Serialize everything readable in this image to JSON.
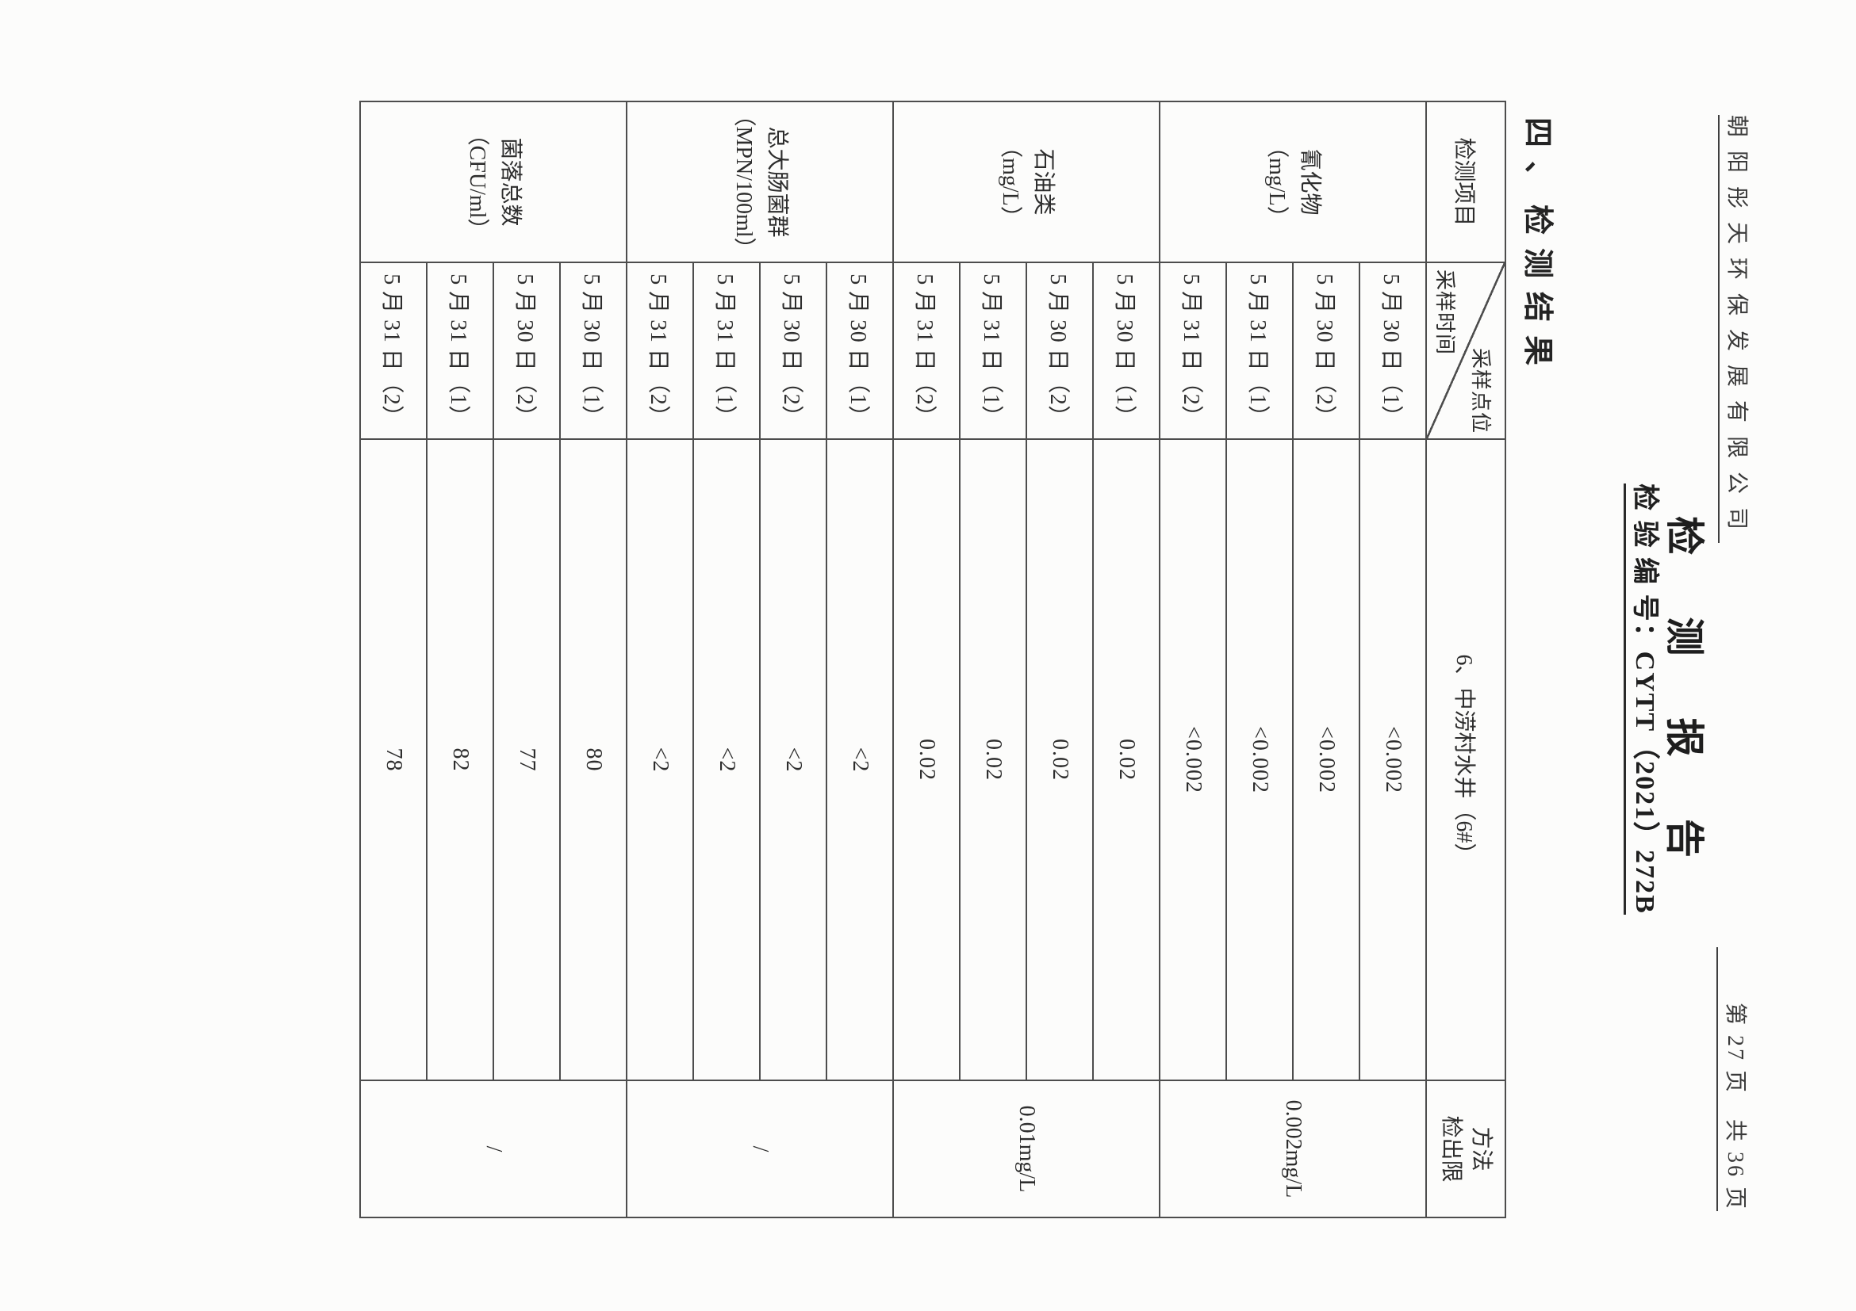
{
  "header": {
    "company": "朝阳彤天环保发展有限公司",
    "page_info": "第 27 页　共 36 页"
  },
  "title": "检 测 报 告",
  "report_no": "检 验 编 号：CYTT（2021）272B",
  "section_heading": "四、检测结果",
  "table": {
    "item_header": "检测项目",
    "corner": {
      "top_right": "采样点位",
      "bottom_left": "采样时间"
    },
    "site_header": "6、中涝村水井（6#）",
    "method_limit_header": [
      "方法",
      "检出限"
    ],
    "sampling_times": [
      "5 月 30 日（1）",
      "5 月 30 日（2）",
      "5 月 31 日（1）",
      "5 月 31 日（2）"
    ],
    "groups": [
      {
        "param": "氰化物",
        "unit": "（mg/L）",
        "values": [
          "<0.002",
          "<0.002",
          "<0.002",
          "<0.002"
        ],
        "method_limit": "0.002mg/L"
      },
      {
        "param": "石油类",
        "unit": "（mg/L）",
        "values": [
          "0.02",
          "0.02",
          "0.02",
          "0.02"
        ],
        "method_limit": "0.01mg/L"
      },
      {
        "param": "总大肠菌群",
        "unit": "（MPN/100ml）",
        "values": [
          "<2",
          "<2",
          "<2",
          "<2"
        ],
        "method_limit": "/"
      },
      {
        "param": "菌落总数",
        "unit": "（CFU/ml）",
        "values": [
          "80",
          "77",
          "82",
          "78"
        ],
        "method_limit": "/"
      }
    ]
  },
  "colors": {
    "paper": "#fcfcfb",
    "ink": "#2d2d2d",
    "line": "#4d4d4d"
  }
}
